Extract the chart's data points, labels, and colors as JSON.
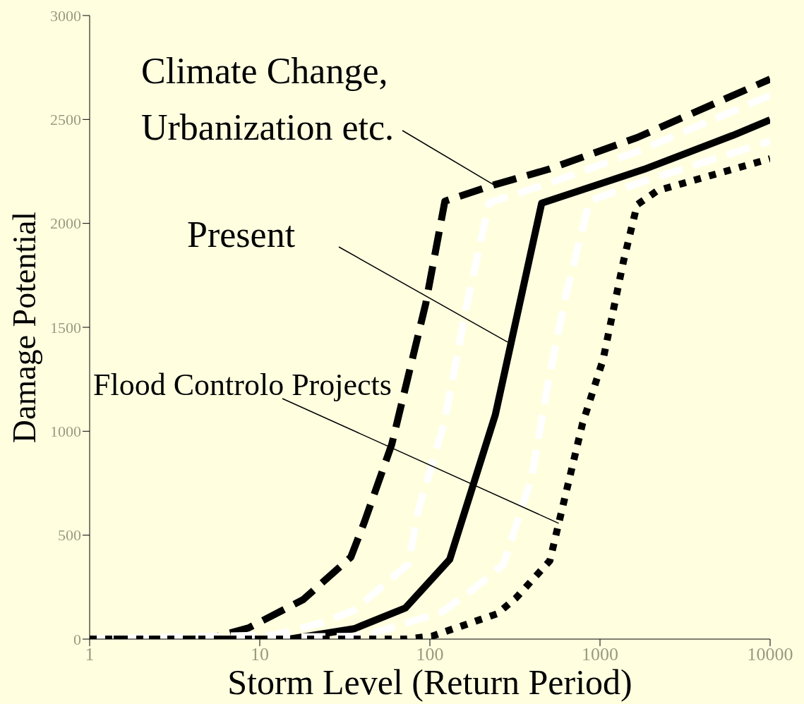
{
  "chart_data": {
    "type": "line",
    "xlabel": "Storm Level (Return Period)",
    "ylabel": "Damage Potential",
    "log": "x",
    "marker": "none",
    "xlim": [
      1,
      10000
    ],
    "xticks": [
      1,
      10,
      100,
      1000,
      10000
    ],
    "ylim": [
      0,
      3000
    ],
    "yticks": [
      0,
      500,
      1000,
      1500,
      2000,
      2500,
      3000
    ],
    "series": [
      {
        "color": "#000000",
        "line_style": "dashed",
        "x": [
          1,
          4.9,
          8.6,
          18,
          34.3,
          41.2,
          59.7,
          94.6,
          122.5,
          238,
          498,
          1653,
          10000
        ],
        "values": [
          0,
          0,
          54,
          190,
          394,
          563,
          937,
          1615,
          2107,
          2185,
          2260,
          2413,
          2694
        ]
      },
      {
        "color": "#ffffff",
        "line_style": "dashed",
        "x": [
          1,
          12.4,
          23.7,
          35.9,
          74.5,
          86.3,
          121.4,
          164.6,
          223,
          498,
          1653,
          10000
        ],
        "values": [
          0,
          20,
          81,
          139,
          360,
          631,
          1038,
          1605,
          2100,
          2192,
          2345,
          2616
        ]
      },
      {
        "color": "#000000",
        "line_style": "solid",
        "x": [
          1,
          14.9,
          35.9,
          71.8,
          130.7,
          242.5,
          454,
          1814,
          6023,
          10000
        ],
        "values": [
          0,
          0,
          50,
          150,
          383,
          1079,
          2097,
          2260,
          2423,
          2498
        ]
      },
      {
        "color": "#ffffff",
        "line_style": "dashed",
        "x": [
          1,
          40.8,
          117,
          180.6,
          271,
          396,
          498,
          628,
          867,
          1653,
          10000
        ],
        "values": [
          0,
          14,
          129,
          241,
          360,
          777,
          1242,
          1649,
          2107,
          2192,
          2396
        ]
      },
      {
        "color": "#000000",
        "line_style": "dotted",
        "x": [
          1,
          71.8,
          102.8,
          249,
          320,
          507,
          572,
          790,
          1042,
          1375,
          1653,
          2182,
          10000
        ],
        "values": [
          0,
          0,
          14,
          122,
          197,
          377,
          557,
          1038,
          1344,
          1819,
          2090,
          2158,
          2311
        ]
      }
    ],
    "annotations": [
      {
        "text": "Climate Change,\nUrbanization etc.",
        "x": 238,
        "y": 2185
      },
      {
        "text": "Present",
        "x": 286,
        "y": 1429
      },
      {
        "text": "Flood Controlo Projects",
        "x": 572,
        "y": 557
      }
    ]
  }
}
